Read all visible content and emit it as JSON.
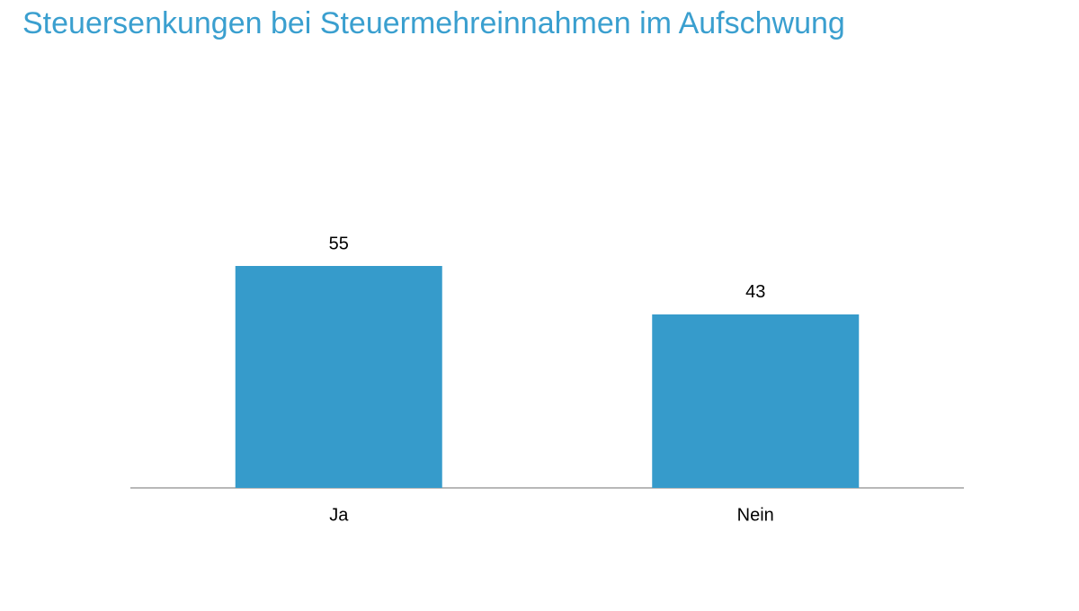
{
  "chart_data": {
    "type": "bar",
    "title": "Steuersenkungen bei Steuermehreinnahmen im Aufschwung",
    "categories": [
      "Ja",
      "Nein"
    ],
    "values": [
      55,
      43
    ],
    "color": "#369bcb"
  }
}
